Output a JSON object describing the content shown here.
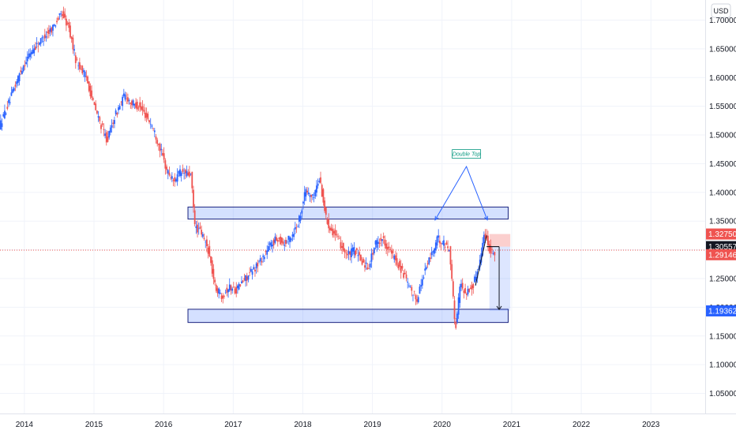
{
  "chart_data": {
    "type": "candlestick",
    "currency": "USD",
    "y_ticks": [
      "1.70000",
      "1.65000",
      "1.60000",
      "1.55000",
      "1.50000",
      "1.45000",
      "1.40000",
      "1.35000",
      "1.30000",
      "1.25000",
      "1.20000",
      "1.15000",
      "1.10000",
      "1.05000"
    ],
    "y_tick_values": [
      1.7,
      1.65,
      1.6,
      1.55,
      1.5,
      1.45,
      1.4,
      1.35,
      1.3,
      1.25,
      1.2,
      1.15,
      1.1,
      1.05
    ],
    "x_ticks": [
      "2014",
      "2015",
      "2016",
      "2017",
      "2018",
      "2019",
      "2020",
      "2021",
      "2022",
      "2023"
    ],
    "x_tick_years": [
      2014,
      2015,
      2016,
      2017,
      2018,
      2019,
      2020,
      2021,
      2022,
      2023
    ],
    "ylim": [
      1.015,
      1.735
    ],
    "xlim": [
      2013.65,
      2023.78
    ],
    "grid": true,
    "price_tags": [
      {
        "label": "1.32750",
        "value": 1.3275,
        "color": "#ef5350"
      },
      {
        "label": "1.30557",
        "value": 1.30557,
        "color": "#131722"
      },
      {
        "label": "1.29146",
        "value": 1.29146,
        "color": "#ef5350"
      },
      {
        "label": "1.19362",
        "value": 1.19362,
        "color": "#2962ff"
      }
    ],
    "current_price": 1.2995,
    "zones": [
      {
        "name": "resistance-zone",
        "x": [
          2016.35,
          2020.95
        ],
        "y": [
          1.3535,
          1.3745
        ]
      },
      {
        "name": "support-zone",
        "x": [
          2016.35,
          2020.95
        ],
        "y": [
          1.1735,
          1.1965
        ]
      }
    ],
    "annotation": {
      "text": "Double Top",
      "x": 2020.35,
      "y": 1.458
    },
    "double_top_lines": [
      [
        2019.9,
        1.352
      ],
      [
        2020.35,
        1.445
      ],
      [
        2020.65,
        1.352
      ]
    ],
    "trade_box": {
      "x": [
        2020.68,
        2020.98
      ],
      "entry": 1.3055,
      "stop": 1.3275,
      "target": 1.194
    },
    "price_path": [
      [
        2013.65,
        1.515
      ],
      [
        2013.8,
        1.56
      ],
      [
        2013.95,
        1.61
      ],
      [
        2014.1,
        1.645
      ],
      [
        2014.25,
        1.665
      ],
      [
        2014.4,
        1.685
      ],
      [
        2014.55,
        1.712
      ],
      [
        2014.65,
        1.685
      ],
      [
        2014.75,
        1.63
      ],
      [
        2014.9,
        1.6
      ],
      [
        2015.0,
        1.555
      ],
      [
        2015.1,
        1.52
      ],
      [
        2015.2,
        1.49
      ],
      [
        2015.3,
        1.53
      ],
      [
        2015.45,
        1.57
      ],
      [
        2015.55,
        1.555
      ],
      [
        2015.65,
        1.55
      ],
      [
        2015.75,
        1.535
      ],
      [
        2015.85,
        1.515
      ],
      [
        2015.95,
        1.48
      ],
      [
        2016.05,
        1.44
      ],
      [
        2016.15,
        1.42
      ],
      [
        2016.25,
        1.435
      ],
      [
        2016.4,
        1.43
      ],
      [
        2016.46,
        1.34
      ],
      [
        2016.55,
        1.33
      ],
      [
        2016.65,
        1.3
      ],
      [
        2016.75,
        1.235
      ],
      [
        2016.85,
        1.22
      ],
      [
        2016.95,
        1.235
      ],
      [
        2017.05,
        1.23
      ],
      [
        2017.15,
        1.245
      ],
      [
        2017.3,
        1.265
      ],
      [
        2017.45,
        1.29
      ],
      [
        2017.55,
        1.31
      ],
      [
        2017.65,
        1.32
      ],
      [
        2017.75,
        1.31
      ],
      [
        2017.85,
        1.325
      ],
      [
        2017.95,
        1.35
      ],
      [
        2018.05,
        1.405
      ],
      [
        2018.15,
        1.39
      ],
      [
        2018.25,
        1.425
      ],
      [
        2018.35,
        1.35
      ],
      [
        2018.45,
        1.33
      ],
      [
        2018.55,
        1.31
      ],
      [
        2018.65,
        1.29
      ],
      [
        2018.75,
        1.3
      ],
      [
        2018.85,
        1.28
      ],
      [
        2018.95,
        1.27
      ],
      [
        2019.05,
        1.31
      ],
      [
        2019.15,
        1.32
      ],
      [
        2019.25,
        1.3
      ],
      [
        2019.35,
        1.28
      ],
      [
        2019.45,
        1.26
      ],
      [
        2019.55,
        1.23
      ],
      [
        2019.65,
        1.215
      ],
      [
        2019.75,
        1.26
      ],
      [
        2019.85,
        1.29
      ],
      [
        2019.95,
        1.32
      ],
      [
        2020.05,
        1.31
      ],
      [
        2020.12,
        1.3
      ],
      [
        2020.2,
        1.16
      ],
      [
        2020.27,
        1.24
      ],
      [
        2020.35,
        1.225
      ],
      [
        2020.45,
        1.235
      ],
      [
        2020.55,
        1.28
      ],
      [
        2020.62,
        1.33
      ],
      [
        2020.7,
        1.3
      ],
      [
        2020.76,
        1.295
      ]
    ]
  }
}
